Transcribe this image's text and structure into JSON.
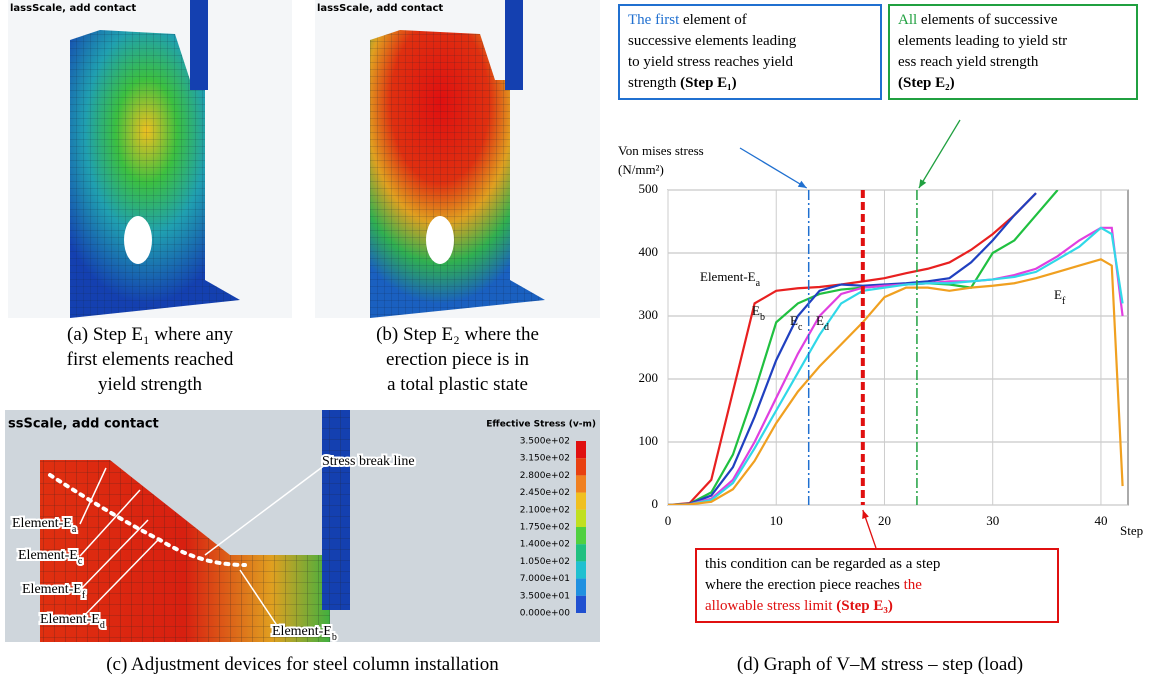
{
  "panel_a": {
    "header": "lassScale, add contact",
    "caption": [
      "(a) Step E₁ where any",
      "first elements reached",
      "yield strength"
    ]
  },
  "panel_b": {
    "header": "lassScale, add contact",
    "caption": [
      "(b) Step E₂ where the",
      "erection piece is in",
      "a total plastic state"
    ]
  },
  "panel_c": {
    "header": "ssScale, add contact",
    "legend_title": "Effective Stress (v-m)",
    "legend_values": [
      "3.500e+02",
      "3.150e+02",
      "2.800e+02",
      "2.450e+02",
      "2.100e+02",
      "1.750e+02",
      "1.400e+02",
      "1.050e+02",
      "7.000e+01",
      "3.500e+01",
      "0.000e+00"
    ],
    "legend_colors": [
      "#e01010",
      "#e84010",
      "#f08020",
      "#f0c020",
      "#c0e020",
      "#50d040",
      "#20c080",
      "#20c0d0",
      "#2090e0",
      "#2050d0",
      "#1020a0"
    ],
    "labels": [
      {
        "text": "Element-E",
        "sub": "a"
      },
      {
        "text": "Element-E",
        "sub": "c"
      },
      {
        "text": "Element-E",
        "sub": "f"
      },
      {
        "text": "Element-E",
        "sub": "d"
      },
      {
        "text": "Element-E",
        "sub": "b"
      },
      {
        "text": "Stress break line",
        "sub": ""
      }
    ],
    "caption": "(c) Adjustment devices for steel column installation"
  },
  "boxes": {
    "blue": {
      "highlight": "The first",
      "lines": [
        " element of",
        "successive elements leading",
        "to yield stress reaches yield",
        "strength "
      ],
      "step": "(Step E₁)"
    },
    "green": {
      "highlight": "All",
      "lines": [
        " elements of successive",
        "elements leading to yield str",
        "ess reach yield strength"
      ],
      "step": "(Step E₂)"
    },
    "red": {
      "lines": [
        "this condition can be regarded as a step",
        "where the erection piece reaches "
      ],
      "highlight": [
        "the",
        "allowable stress limit "
      ],
      "step": "(Step E₃)"
    }
  },
  "panel_d_caption": "(d)  Graph of V–M stress – step (load)",
  "chart_data": {
    "type": "line",
    "y_label": [
      "Von mises stress",
      "(N/mm²)"
    ],
    "x_label": "Step",
    "x": [
      0,
      2,
      4,
      6,
      8,
      10,
      12,
      14,
      16,
      18,
      20,
      22,
      24,
      26,
      28,
      30,
      32,
      34,
      36,
      38,
      40,
      41,
      42
    ],
    "xlim": [
      0,
      42.5
    ],
    "xticks": [
      0,
      10,
      20,
      30,
      40
    ],
    "ylim": [
      0,
      500
    ],
    "yticks": [
      0,
      100,
      200,
      300,
      400,
      500
    ],
    "grid": true,
    "series": [
      {
        "color": "#e82020",
        "values": [
          0,
          3,
          40,
          180,
          320,
          340,
          344,
          346,
          350,
          355,
          360,
          368,
          375,
          385,
          405,
          430,
          460,
          495,
          null,
          null,
          null,
          null,
          null
        ]
      },
      {
        "color": "#20c040",
        "values": [
          0,
          2,
          20,
          80,
          180,
          290,
          320,
          335,
          342,
          345,
          348,
          350,
          352,
          350,
          345,
          400,
          420,
          460,
          500,
          null,
          null,
          null,
          null
        ]
      },
      {
        "color": "#2040c0",
        "values": [
          0,
          2,
          15,
          60,
          140,
          230,
          300,
          340,
          350,
          348,
          350,
          352,
          355,
          360,
          385,
          420,
          460,
          495,
          null,
          null,
          null,
          null,
          null
        ]
      },
      {
        "color": "#e040e0",
        "values": [
          0,
          1,
          10,
          40,
          100,
          170,
          240,
          300,
          335,
          345,
          348,
          350,
          352,
          355,
          355,
          358,
          365,
          375,
          395,
          420,
          440,
          440,
          300
        ]
      },
      {
        "color": "#30d8e8",
        "values": [
          0,
          1,
          8,
          35,
          90,
          150,
          210,
          270,
          320,
          340,
          345,
          350,
          352,
          352,
          355,
          358,
          362,
          370,
          390,
          410,
          440,
          430,
          320
        ]
      },
      {
        "color": "#f0a020",
        "values": [
          0,
          1,
          5,
          25,
          70,
          130,
          180,
          220,
          255,
          290,
          330,
          345,
          345,
          340,
          345,
          348,
          352,
          360,
          370,
          380,
          390,
          380,
          30
        ]
      }
    ],
    "annotations": [
      {
        "text": "Element-E",
        "sub": "a"
      },
      {
        "text": "E",
        "sub": "b"
      },
      {
        "text": "E",
        "sub": "c"
      },
      {
        "text": "E",
        "sub": "d"
      },
      {
        "text": "E",
        "sub": "f"
      }
    ],
    "markers": [
      {
        "x": 13,
        "color": "#2070d0"
      },
      {
        "x": 18,
        "color": "#e01010"
      },
      {
        "x": 23,
        "color": "#20a040"
      }
    ]
  }
}
